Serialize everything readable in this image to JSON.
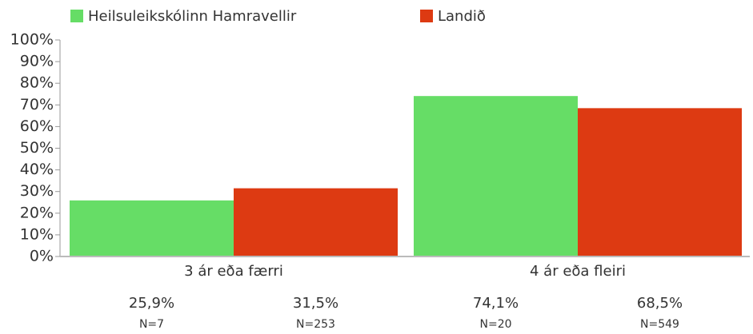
{
  "chart_data": {
    "type": "bar",
    "categories": [
      "3 ár eða færri",
      "4 ár eða fleiri"
    ],
    "series": [
      {
        "name": "Heilsuleikskólinn Hamravellir",
        "color": "#66dd66",
        "values": [
          25.9,
          74.1
        ],
        "value_labels": [
          "25,9%",
          "74,1%"
        ],
        "n_labels": [
          "N=7",
          "N=20"
        ]
      },
      {
        "name": "Landið",
        "color": "#dd3a12",
        "values": [
          31.5,
          68.5
        ],
        "value_labels": [
          "31,5%",
          "68,5%"
        ],
        "n_labels": [
          "N=253",
          "N=549"
        ]
      }
    ],
    "ylim": [
      0,
      100
    ],
    "yticks": [
      {
        "value": 0,
        "label": "0%"
      },
      {
        "value": 10,
        "label": "10%"
      },
      {
        "value": 20,
        "label": "20%"
      },
      {
        "value": 30,
        "label": "30%"
      },
      {
        "value": 40,
        "label": "40%"
      },
      {
        "value": 50,
        "label": "50%"
      },
      {
        "value": 60,
        "label": "60%"
      },
      {
        "value": 70,
        "label": "70%"
      },
      {
        "value": 80,
        "label": "80%"
      },
      {
        "value": 90,
        "label": "90%"
      },
      {
        "value": 100,
        "label": "100%"
      }
    ],
    "legend": "top"
  }
}
